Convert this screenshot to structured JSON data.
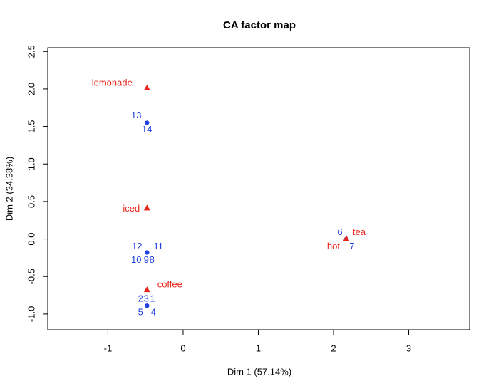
{
  "chart_data": {
    "type": "scatter",
    "title": "CA factor map",
    "x_label": "Dim 1 (57.14%)",
    "y_label": "Dim 2 (34.38%)",
    "xlim": [
      -1.8,
      3.81
    ],
    "ylim": [
      -1.21,
      2.55
    ],
    "xticks": [
      -1,
      0,
      1,
      2,
      3
    ],
    "yticks": [
      {
        "value": -1,
        "label": "-1.0"
      },
      -0.5,
      {
        "value": 0,
        "label": "0.0"
      },
      0.5,
      {
        "value": 1,
        "label": "1.0"
      },
      1.5,
      {
        "value": 2,
        "label": "2.0"
      },
      2.5
    ],
    "grid": false,
    "series": [
      {
        "marker": "circle",
        "color": "#1f3fe0",
        "x": [
          -0.48,
          -0.48,
          -0.48,
          -0.48,
          -0.48,
          2.17,
          2.17,
          -0.48,
          -0.48,
          -0.48,
          -0.48,
          -0.48,
          -0.48,
          -0.48
        ],
        "values": [
          -0.89,
          -0.89,
          -0.89,
          -0.89,
          -0.89,
          0.0,
          0.0,
          -0.18,
          -0.18,
          -0.18,
          -0.18,
          -0.18,
          1.55,
          1.55
        ],
        "labels": [
          "1",
          "2",
          "3",
          "4",
          "5",
          "6",
          "7",
          "8",
          "9",
          "10",
          "11",
          "12",
          "13",
          "14"
        ]
      },
      {
        "marker": "triangle",
        "color": "#e8281e",
        "x": [
          -0.48,
          -0.48,
          -0.48,
          2.17,
          2.17
        ],
        "values": [
          2.01,
          0.41,
          -0.68,
          0.0,
          0.0
        ],
        "labels": [
          "lemonade",
          "iced",
          "coffee",
          "tea",
          "hot"
        ]
      }
    ]
  }
}
